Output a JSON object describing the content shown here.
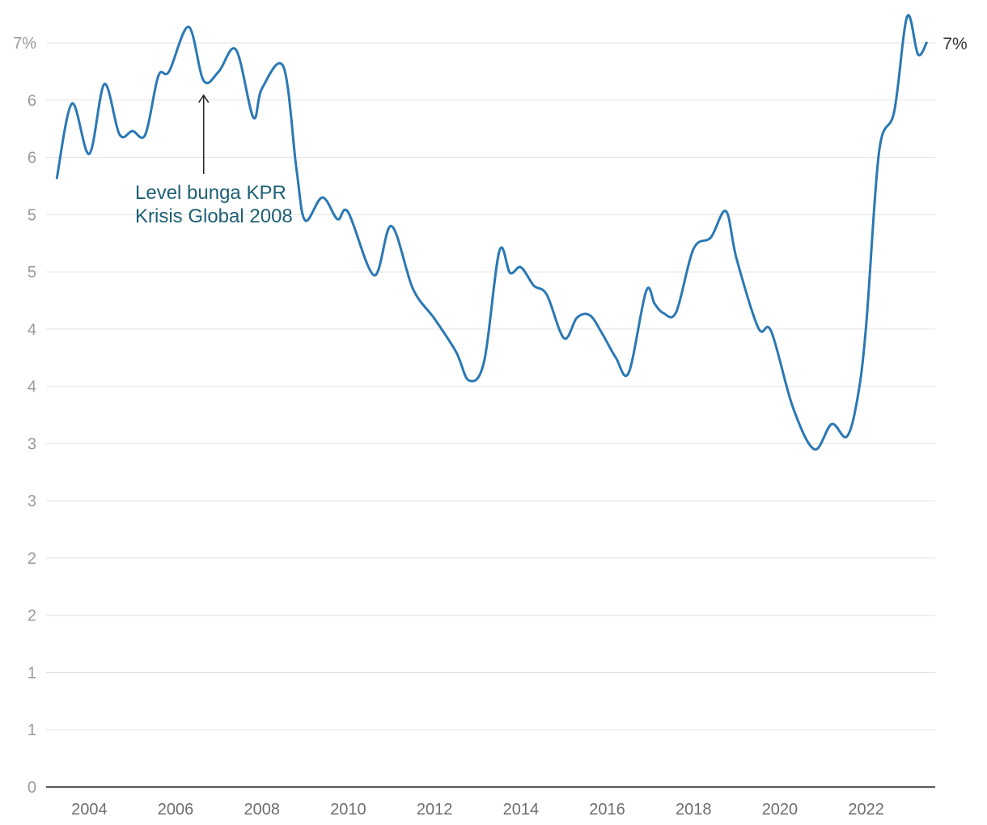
{
  "chart_data": {
    "type": "line",
    "title": "",
    "xlabel": "",
    "ylabel": "",
    "xlim": [
      2003,
      2023.6
    ],
    "ylim": [
      0,
      6.5
    ],
    "grid": true,
    "y_ticks": [
      {
        "value": 0,
        "label": "0"
      },
      {
        "value": 0.5,
        "label": "1"
      },
      {
        "value": 1,
        "label": "1"
      },
      {
        "value": 1.5,
        "label": "2"
      },
      {
        "value": 2,
        "label": "2"
      },
      {
        "value": 2.5,
        "label": "3"
      },
      {
        "value": 3,
        "label": "3"
      },
      {
        "value": 3.5,
        "label": "4"
      },
      {
        "value": 4,
        "label": "4"
      },
      {
        "value": 4.5,
        "label": "5"
      },
      {
        "value": 5,
        "label": "5"
      },
      {
        "value": 5.5,
        "label": "6"
      },
      {
        "value": 6,
        "label": "6"
      },
      {
        "value": 6.5,
        "label": "7%"
      }
    ],
    "x_ticks": [
      "2004",
      "2006",
      "2008",
      "2010",
      "2012",
      "2014",
      "2016",
      "2018",
      "2020",
      "2022"
    ],
    "series": [
      {
        "color": "#2a78b4",
        "end_label": "7%",
        "x": [
          2003.25,
          2003.6,
          2004.0,
          2004.35,
          2004.7,
          2005.0,
          2005.3,
          2005.6,
          2005.85,
          2006.3,
          2006.65,
          2007.0,
          2007.4,
          2007.8,
          2008.0,
          2008.5,
          2008.8,
          2009.0,
          2009.4,
          2009.75,
          2010.0,
          2010.6,
          2011.0,
          2011.5,
          2012.0,
          2012.5,
          2012.8,
          2013.15,
          2013.5,
          2013.75,
          2014.0,
          2014.3,
          2014.6,
          2015.0,
          2015.3,
          2015.6,
          2015.9,
          2016.2,
          2016.5,
          2016.9,
          2017.1,
          2017.3,
          2017.6,
          2018.0,
          2018.4,
          2018.75,
          2019.0,
          2019.5,
          2019.8,
          2020.3,
          2020.8,
          2021.2,
          2021.55,
          2021.8,
          2022.0,
          2022.3,
          2022.65,
          2022.95,
          2023.2,
          2023.4
        ],
        "y": [
          5.32,
          5.97,
          5.53,
          6.14,
          5.7,
          5.73,
          5.7,
          6.21,
          6.25,
          6.64,
          6.17,
          6.25,
          6.44,
          5.85,
          6.1,
          6.29,
          5.4,
          4.95,
          5.15,
          4.96,
          5.02,
          4.47,
          4.9,
          4.35,
          4.09,
          3.8,
          3.55,
          3.72,
          4.68,
          4.49,
          4.54,
          4.38,
          4.3,
          3.92,
          4.1,
          4.12,
          3.95,
          3.75,
          3.62,
          4.33,
          4.22,
          4.14,
          4.15,
          4.7,
          4.8,
          5.03,
          4.61,
          4.01,
          3.98,
          3.32,
          2.95,
          3.17,
          3.06,
          3.4,
          4.03,
          5.55,
          5.9,
          6.73,
          6.4,
          6.5
        ]
      }
    ],
    "annotations": [
      {
        "lines": [
          "Level bunga KPR",
          "Krisis Global 2008"
        ],
        "x": 2006.65,
        "y": 6.17
      }
    ]
  }
}
